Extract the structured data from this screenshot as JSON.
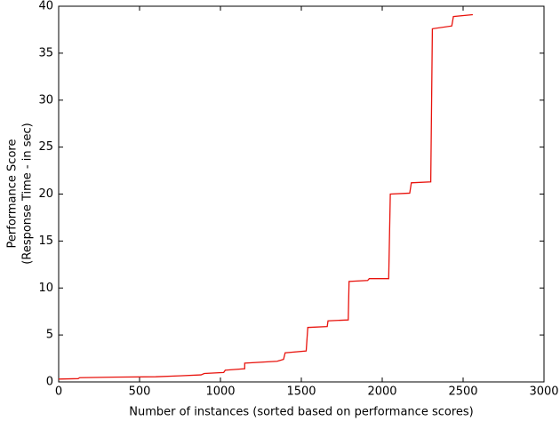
{
  "chart_data": {
    "type": "line",
    "x_label": "Number of instances (sorted based on performance scores)",
    "y_label": [
      "Performance Score",
      "(Response Time - in sec)"
    ],
    "x": [
      0,
      120,
      130,
      300,
      600,
      750,
      880,
      900,
      1020,
      1030,
      1150,
      1150,
      1350,
      1390,
      1400,
      1530,
      1540,
      1660,
      1665,
      1790,
      1795,
      1910,
      1920,
      2040,
      2050,
      2170,
      2180,
      2300,
      2310,
      2430,
      2440,
      2560
    ],
    "series": [
      {
        "name": "Performance Score",
        "color": "#e8120c",
        "values": [
          0.3,
          0.35,
          0.45,
          0.5,
          0.55,
          0.65,
          0.75,
          0.9,
          1.0,
          1.25,
          1.4,
          2.0,
          2.2,
          2.4,
          3.1,
          3.3,
          5.8,
          5.9,
          6.5,
          6.6,
          10.7,
          10.8,
          11.0,
          11.0,
          20.0,
          20.1,
          21.2,
          21.3,
          37.6,
          37.9,
          38.9,
          39.1
        ]
      }
    ],
    "xlim": [
      0,
      3000
    ],
    "xticks": [
      0,
      500,
      1000,
      1500,
      2000,
      2500,
      3000
    ],
    "ylim": [
      0,
      40
    ],
    "yticks": [
      0,
      5,
      10,
      15,
      20,
      25,
      30,
      35,
      40
    ],
    "grid": false
  }
}
